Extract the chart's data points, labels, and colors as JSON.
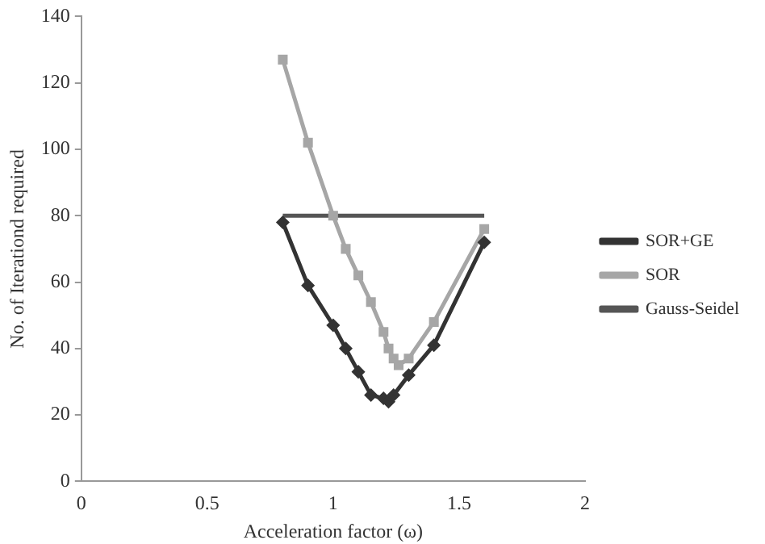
{
  "chart_data": {
    "type": "line",
    "xlabel": "Acceleration factor (ω)",
    "ylabel": "No. of Iterationd required",
    "xlim": [
      0,
      2
    ],
    "xticks": [
      0,
      0.5,
      1,
      1.5,
      2
    ],
    "ylim": [
      0,
      140
    ],
    "yticks": [
      0,
      20,
      40,
      60,
      80,
      100,
      120,
      140
    ],
    "grid": false,
    "legend": "right",
    "series": [
      {
        "name": "SOR+GE",
        "color": "#333333",
        "marker": "diamond",
        "x": [
          0.8,
          0.9,
          1.0,
          1.05,
          1.1,
          1.15,
          1.2,
          1.22,
          1.24,
          1.3,
          1.4,
          1.6
        ],
        "values": [
          78,
          59,
          47,
          40,
          33,
          26,
          25,
          24,
          26,
          32,
          41,
          72
        ]
      },
      {
        "name": "SOR",
        "color": "#a6a6a6",
        "marker": "square",
        "x": [
          0.8,
          0.9,
          1.0,
          1.05,
          1.1,
          1.15,
          1.2,
          1.22,
          1.24,
          1.26,
          1.3,
          1.4,
          1.6
        ],
        "values": [
          127,
          102,
          80,
          70,
          62,
          54,
          45,
          40,
          37,
          35,
          37,
          48,
          76
        ]
      },
      {
        "name": "Gauss-Seidel",
        "color": "#555555",
        "marker": "none",
        "x": [
          0.8,
          1.6
        ],
        "values": [
          80,
          80
        ]
      }
    ]
  }
}
